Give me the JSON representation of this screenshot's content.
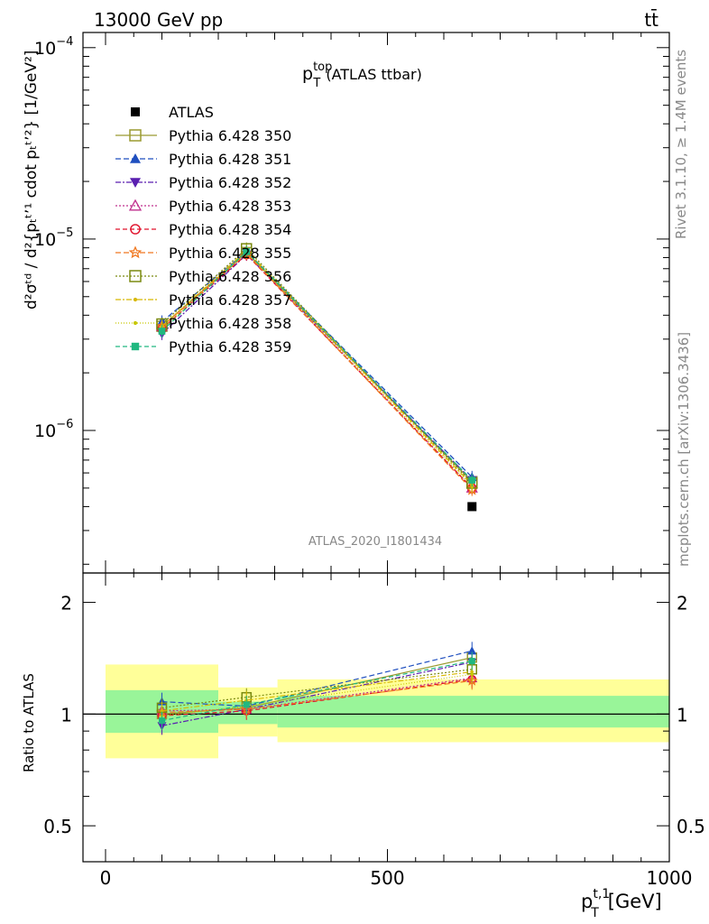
{
  "header": {
    "energy_label": "13000 GeV pp",
    "process_label": "tt̄",
    "rivet_label": "Rivet 3.1.10, ≥ 1.4M events",
    "mcplots_label": "mcplots.cern.ch [arXiv:1306.3436]",
    "analysis_label": "ATLAS_2020_I1801434"
  },
  "chart_data": [
    {
      "type": "line",
      "title_main": "p",
      "title_sup": "top",
      "title_sub": "T",
      "title_suffix": "(ATLAS ttbar)",
      "ylabel": "d²σᵗᵈ / d²{pₜᵗʼ¹ cdot pₜᵗʼ²} [1/GeV²]",
      "y_scale": "log",
      "ylim": [
        1.8e-07,
        0.00012
      ],
      "y_ticks": [
        {
          "value": 1e-06,
          "base": "10",
          "exp": "−6"
        },
        {
          "value": 1e-05,
          "base": "10",
          "exp": "−5"
        },
        {
          "value": 0.0001,
          "base": "10",
          "exp": "−4"
        }
      ],
      "xlim": [
        -40,
        1000
      ],
      "x": [
        100,
        250,
        650
      ],
      "data": {
        "name": "ATLAS",
        "values": [
          null,
          null,
          4e-07
        ]
      },
      "series": [
        {
          "name": "Pythia 6.428 350",
          "color": "#9a9a30",
          "marker": "square-open",
          "dash": "",
          "values": [
            3.5e-06,
            8.5e-06,
            5.4e-07
          ]
        },
        {
          "name": "Pythia 6.428 351",
          "color": "#1f4fbf",
          "marker": "triangle-up",
          "dash": "6,3",
          "values": [
            3.7e-06,
            8.6e-06,
            5.7e-07
          ]
        },
        {
          "name": "Pythia 6.428 352",
          "color": "#5a1fb0",
          "marker": "triangle-down",
          "dash": "6,2,2,2",
          "values": [
            3.2e-06,
            8.3e-06,
            5.5e-07
          ]
        },
        {
          "name": "Pythia 6.428 353",
          "color": "#c0308f",
          "marker": "triangle-open",
          "dash": "2,2",
          "values": [
            3.5e-06,
            8.4e-06,
            5e-07
          ]
        },
        {
          "name": "Pythia 6.428 354",
          "color": "#e0102a",
          "marker": "circle-open",
          "dash": "5,3",
          "values": [
            3.4e-06,
            8.3e-06,
            5e-07
          ]
        },
        {
          "name": "Pythia 6.428 355",
          "color": "#f07820",
          "marker": "star-open",
          "dash": "6,3",
          "values": [
            3.5e-06,
            8.4e-06,
            4.9e-07
          ]
        },
        {
          "name": "Pythia 6.428 356",
          "color": "#7a8a10",
          "marker": "square-open",
          "dash": "2,2",
          "values": [
            3.6e-06,
            8.9e-06,
            5.3e-07
          ]
        },
        {
          "name": "Pythia 6.428 357",
          "color": "#d8b800",
          "marker": "dot",
          "dash": "6,2,2,2",
          "values": [
            3.5e-06,
            8.7e-06,
            5.2e-07
          ]
        },
        {
          "name": "Pythia 6.428 358",
          "color": "#c8c800",
          "marker": "dot",
          "dash": "1,2",
          "values": [
            3.4e-06,
            8.5e-06,
            5.1e-07
          ]
        },
        {
          "name": "Pythia 6.428 359",
          "color": "#20b880",
          "marker": "square",
          "dash": "5,3",
          "values": [
            3.3e-06,
            8.6e-06,
            5.5e-07
          ]
        }
      ]
    },
    {
      "type": "line",
      "ylabel": "Ratio to ATLAS",
      "y_scale": "log",
      "ylim": [
        0.4,
        2.4
      ],
      "y_ticks": [
        0.5,
        1,
        2
      ],
      "xlabel_main": "p",
      "xlabel_sup": "t,1",
      "xlabel_sub": "T",
      "xlabel_unit": "[GeV]",
      "xlim": [
        -40,
        1000
      ],
      "x_ticks": [
        0,
        500,
        1000
      ],
      "x": [
        100,
        250,
        650
      ],
      "bands": [
        {
          "x0": 0,
          "x1": 200,
          "inner": [
            0.89,
            1.16
          ],
          "outer": [
            0.76,
            1.36
          ]
        },
        {
          "x0": 200,
          "x1": 305,
          "inner": [
            0.94,
            1.08
          ],
          "outer": [
            0.87,
            1.18
          ]
        },
        {
          "x0": 305,
          "x1": 1000,
          "inner": [
            0.92,
            1.12
          ],
          "outer": [
            0.84,
            1.24
          ]
        }
      ],
      "series": [
        {
          "name": "Pythia 6.428 350",
          "values": [
            1.0,
            1.04,
            1.42
          ]
        },
        {
          "name": "Pythia 6.428 351",
          "values": [
            1.08,
            1.05,
            1.48
          ]
        },
        {
          "name": "Pythia 6.428 352",
          "values": [
            0.93,
            1.03,
            1.38
          ]
        },
        {
          "name": "Pythia 6.428 353",
          "values": [
            1.02,
            1.03,
            1.25
          ]
        },
        {
          "name": "Pythia 6.428 354",
          "values": [
            0.99,
            1.02,
            1.24
          ]
        },
        {
          "name": "Pythia 6.428 355",
          "values": [
            1.01,
            1.03,
            1.23
          ]
        },
        {
          "name": "Pythia 6.428 356",
          "values": [
            1.04,
            1.11,
            1.32
          ]
        },
        {
          "name": "Pythia 6.428 357",
          "values": [
            1.02,
            1.09,
            1.3
          ]
        },
        {
          "name": "Pythia 6.428 358",
          "values": [
            0.99,
            1.05,
            1.28
          ]
        },
        {
          "name": "Pythia 6.428 359",
          "values": [
            0.96,
            1.06,
            1.39
          ]
        }
      ]
    }
  ]
}
